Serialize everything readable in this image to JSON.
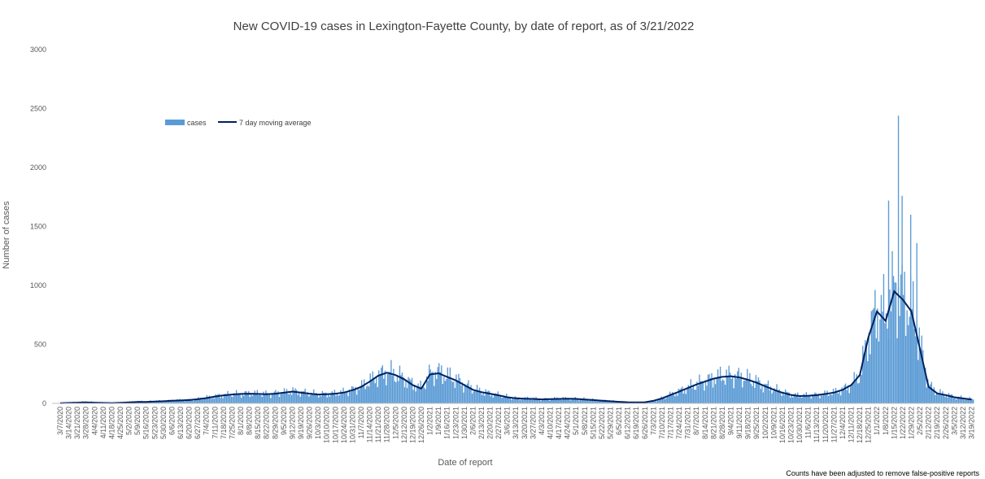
{
  "chart_data": {
    "type": "bar",
    "title": "New COVID-19 cases in Lexington-Fayette County, by date of report, as of 3/21/2022",
    "xlabel": "Date of report",
    "ylabel": "Number of cases",
    "ylim": [
      0,
      3000
    ],
    "yticks": [
      0,
      500,
      1000,
      1500,
      2000,
      2500,
      3000
    ],
    "grid": false,
    "legend_position": "top-left",
    "footnote": "Counts have been adjusted to remove false-positive reports",
    "x_range": [
      "3/7/2020",
      "3/20/2022"
    ],
    "x_tick_labels": [
      "3/7/2020",
      "3/14/2020",
      "3/21/2020",
      "3/28/2020",
      "4/4/2020",
      "4/11/2020",
      "4/18/2020",
      "4/25/2020",
      "5/2/2020",
      "5/9/2020",
      "5/16/2020",
      "5/23/2020",
      "5/30/2020",
      "6/6/2020",
      "6/13/2020",
      "6/20/2020",
      "6/27/2020",
      "7/4/2020",
      "7/11/2020",
      "7/18/2020",
      "7/25/2020",
      "8/1/2020",
      "8/8/2020",
      "8/15/2020",
      "8/22/2020",
      "8/29/2020",
      "9/5/2020",
      "9/12/2020",
      "9/19/2020",
      "9/26/2020",
      "10/3/2020",
      "10/10/2020",
      "10/17/2020",
      "10/24/2020",
      "10/31/2020",
      "11/7/2020",
      "11/14/2020",
      "11/21/2020",
      "11/28/2020",
      "12/5/2020",
      "12/12/2020",
      "12/19/2020",
      "12/26/2020",
      "1/2/2021",
      "1/9/2021",
      "1/16/2021",
      "1/23/2021",
      "1/30/2021",
      "2/6/2021",
      "2/13/2021",
      "2/20/2021",
      "2/27/2021",
      "3/6/2021",
      "3/13/2021",
      "3/20/2021",
      "3/27/2021",
      "4/3/2021",
      "4/10/2021",
      "4/17/2021",
      "4/24/2021",
      "5/1/2021",
      "5/8/2021",
      "5/15/2021",
      "5/22/2021",
      "5/29/2021",
      "6/5/2021",
      "6/12/2021",
      "6/19/2021",
      "6/26/2021",
      "7/3/2021",
      "7/10/2021",
      "7/17/2021",
      "7/24/2021",
      "7/31/2021",
      "8/7/2021",
      "8/14/2021",
      "8/21/2021",
      "8/28/2021",
      "9/4/2021",
      "9/11/2021",
      "9/18/2021",
      "9/25/2021",
      "10/2/2021",
      "10/9/2021",
      "10/16/2021",
      "10/23/2021",
      "10/30/2021",
      "11/6/2021",
      "11/13/2021",
      "11/20/2021",
      "11/27/2021",
      "12/4/2021",
      "12/11/2021",
      "12/18/2021",
      "12/25/2021",
      "1/1/2022",
      "1/8/2022",
      "1/15/2022",
      "1/22/2022",
      "1/29/2022",
      "2/5/2022",
      "2/12/2022",
      "2/19/2022",
      "2/26/2022",
      "3/5/2022",
      "3/12/2022",
      "3/19/2022"
    ],
    "series": [
      {
        "name": "cases",
        "type": "bar",
        "color": "#5b9bd5",
        "x_step_days": 7,
        "values": [
          5,
          8,
          12,
          15,
          10,
          6,
          5,
          8,
          12,
          18,
          15,
          22,
          20,
          25,
          28,
          30,
          38,
          50,
          62,
          70,
          78,
          82,
          85,
          82,
          80,
          85,
          92,
          105,
          95,
          85,
          78,
          80,
          85,
          95,
          115,
          145,
          190,
          240,
          265,
          245,
          210,
          160,
          130,
          255,
          265,
          230,
          200,
          160,
          120,
          100,
          85,
          70,
          55,
          45,
          42,
          40,
          35,
          38,
          40,
          42,
          40,
          35,
          30,
          25,
          20,
          15,
          12,
          10,
          12,
          25,
          45,
          75,
          105,
          135,
          165,
          190,
          215,
          230,
          235,
          225,
          205,
          180,
          150,
          120,
          95,
          75,
          65,
          68,
          72,
          82,
          95,
          120,
          160,
          250,
          600,
          800,
          750,
          1000,
          900,
          800,
          480,
          150,
          90,
          75,
          55,
          45,
          35
        ]
      },
      {
        "name": "7 day moving average",
        "type": "line",
        "color": "#002060",
        "x_step_days": 7,
        "values": [
          2,
          4,
          6,
          8,
          6,
          4,
          3,
          5,
          8,
          12,
          12,
          15,
          18,
          22,
          25,
          28,
          35,
          45,
          58,
          68,
          75,
          80,
          82,
          80,
          78,
          82,
          90,
          100,
          92,
          82,
          75,
          78,
          82,
          92,
          112,
          140,
          185,
          235,
          260,
          240,
          205,
          155,
          125,
          245,
          255,
          225,
          195,
          155,
          115,
          95,
          82,
          68,
          52,
          43,
          40,
          38,
          34,
          36,
          38,
          40,
          38,
          33,
          28,
          23,
          18,
          13,
          10,
          8,
          10,
          22,
          42,
          72,
          100,
          130,
          160,
          185,
          210,
          225,
          230,
          220,
          200,
          175,
          145,
          115,
          90,
          72,
          62,
          65,
          70,
          80,
          92,
          115,
          155,
          240,
          560,
          780,
          700,
          950,
          880,
          780,
          460,
          140,
          85,
          70,
          52,
          42,
          33
        ]
      }
    ],
    "annotations": [
      {
        "date": "1/10/2022",
        "cases": 1720
      },
      {
        "date": "1/18/2022",
        "cases": 2440
      },
      {
        "date": "1/21/2022",
        "cases": 1760
      },
      {
        "date": "1/28/2022",
        "cases": 1600
      },
      {
        "date": "2/2/2022",
        "cases": 1360
      }
    ]
  }
}
